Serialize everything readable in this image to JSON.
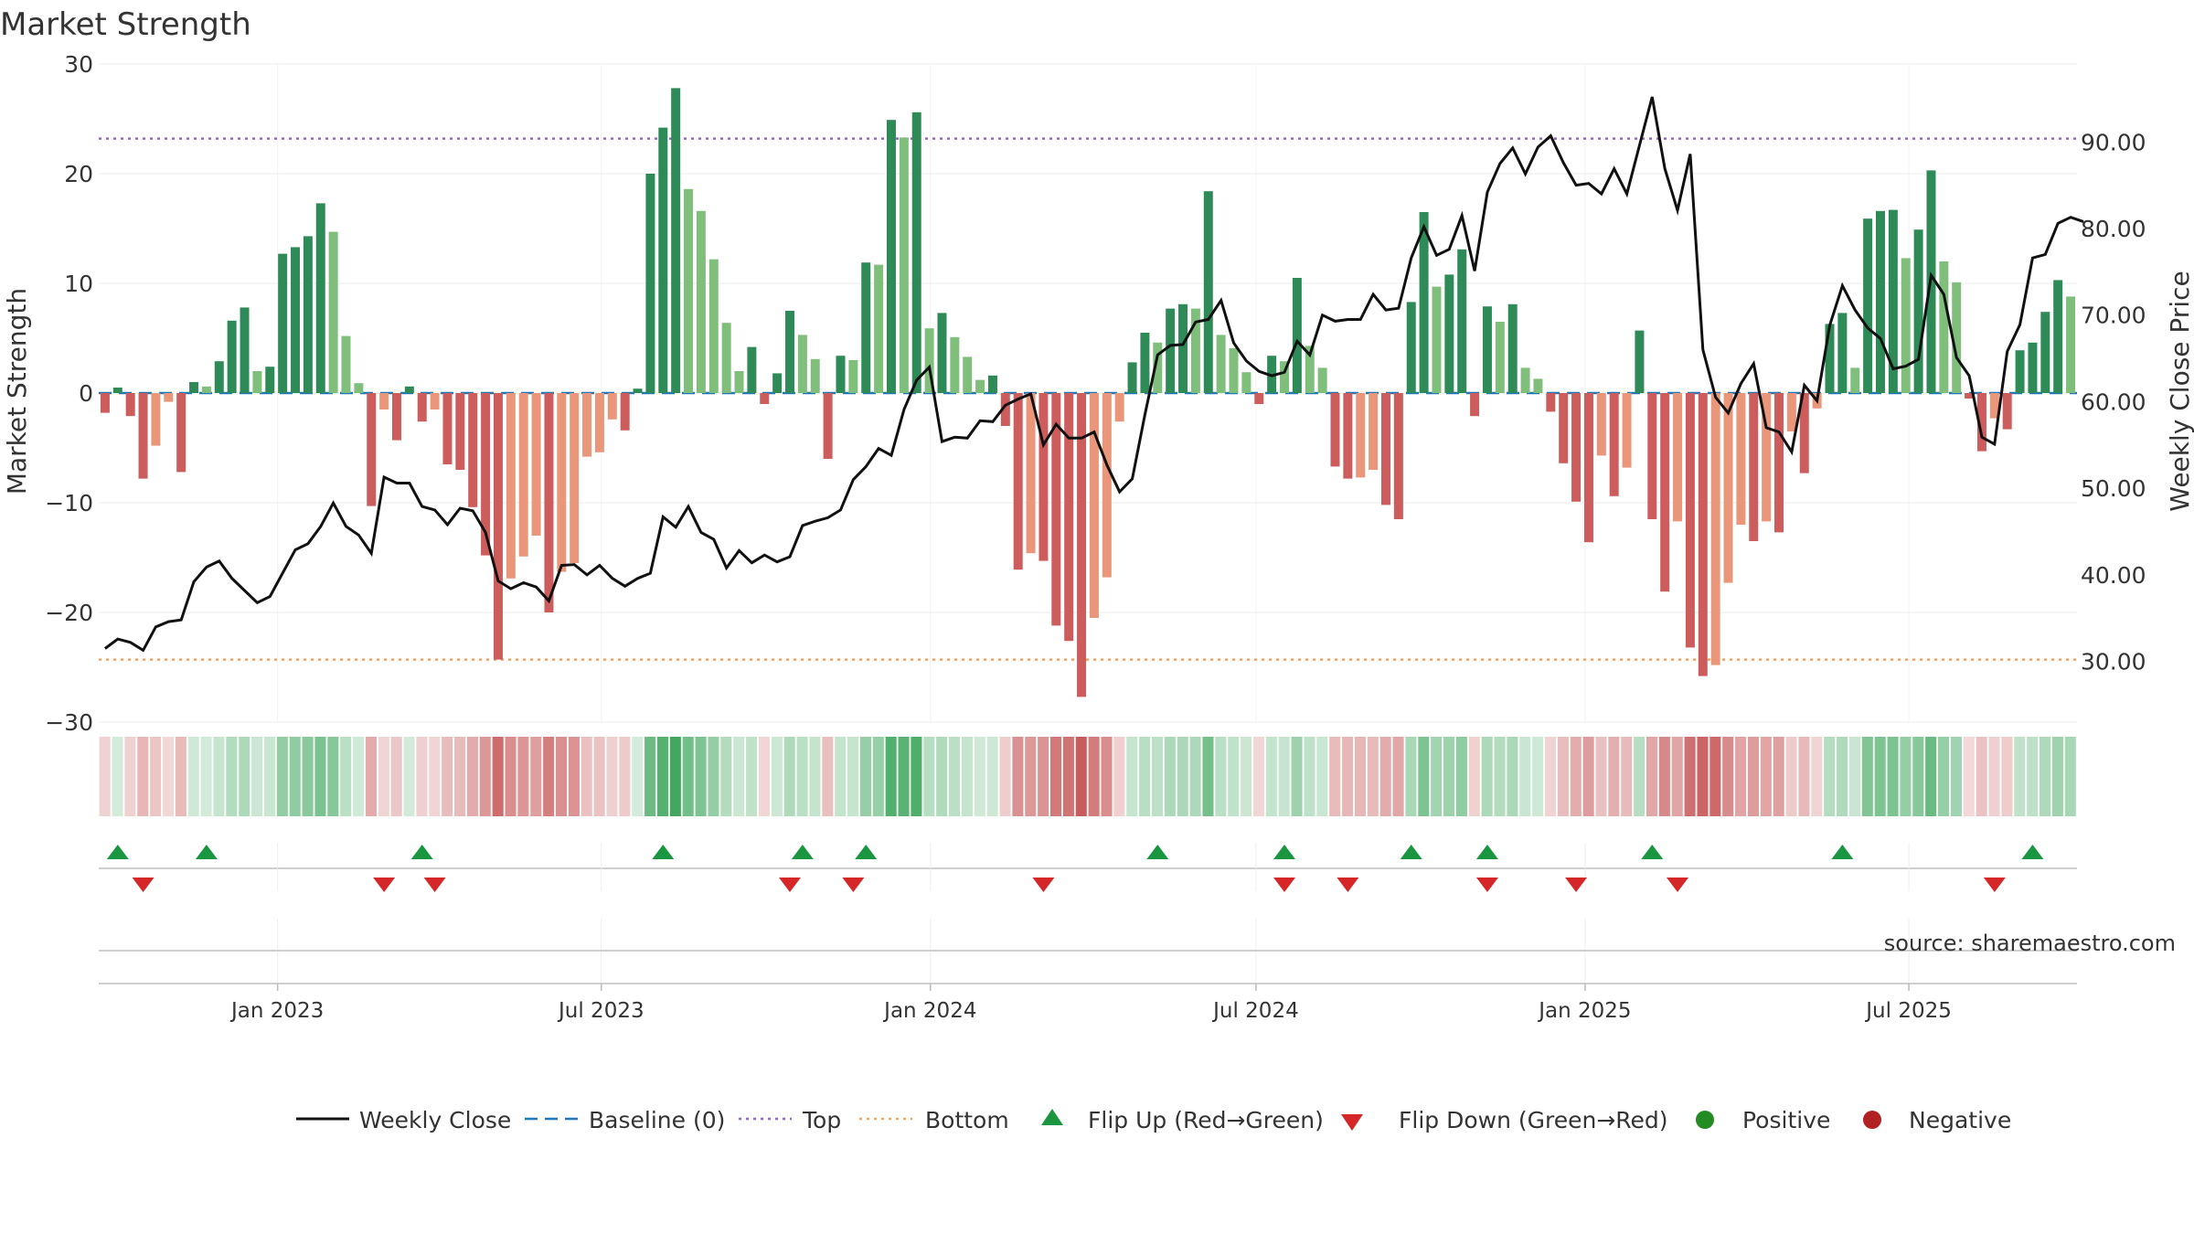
{
  "chart_data": {
    "type": "bar",
    "title": "Market Strength",
    "ylabel": "Market Strength",
    "y2label": "Weekly Close Price",
    "ylim": [
      -30,
      30
    ],
    "y2lim": [
      23.0,
      99.0
    ],
    "yticks": [
      30,
      20,
      10,
      0,
      -10,
      -20,
      -30
    ],
    "ytick_labels": [
      "30",
      "20",
      "10",
      "0",
      "−10",
      "−20",
      "−30"
    ],
    "y2ticks": [
      30,
      40,
      50,
      60,
      70,
      80,
      90
    ],
    "y2tick_labels": [
      "30.00",
      "40.00",
      "50.00",
      "60.00",
      "70.00",
      "80.00",
      "90.00"
    ],
    "top_level": 23.2,
    "bottom_level": -24.3,
    "x_start": "2022-09-23",
    "x_end": "2025-10-03",
    "xticks": [
      "2023-01-01",
      "2023-07-01",
      "2024-01-01",
      "2024-07-01",
      "2025-01-01",
      "2025-07-01"
    ],
    "xtick_labels": [
      "Jan 2023",
      "Jul 2023",
      "Jan 2024",
      "Jul 2024",
      "Jan 2025",
      "Jul 2025"
    ],
    "source": "source: sharemaestro.com",
    "legend": {
      "weekly_close": "Weekly Close",
      "baseline": "Baseline (0)",
      "top": "Top",
      "bottom": "Bottom",
      "flip_up": "Flip Up (Red→Green)",
      "flip_down": "Flip Down (Green→Red)",
      "positive": "Positive",
      "negative": "Negative"
    },
    "colors": {
      "pos_dark": "#2e8b57",
      "pos_light": "#7fbf7b",
      "neg_dark": "#cd5c5c",
      "neg_light": "#e9967a",
      "line": "#111111",
      "baseline": "#1f77b4",
      "top": "#9467bd",
      "bottom": "#f4a460",
      "flip_up": "#1a9641",
      "flip_down": "#d62728",
      "positive_dot": "#228b22",
      "negative_dot": "#b22222"
    },
    "strength": [
      -1.8,
      0.5,
      -2.1,
      -7.8,
      -4.8,
      -0.8,
      -7.2,
      1.0,
      0.6,
      2.9,
      6.6,
      7.8,
      2.0,
      2.4,
      12.7,
      13.3,
      14.3,
      17.3,
      14.7,
      5.2,
      0.9,
      -10.3,
      -1.5,
      -4.3,
      0.6,
      -2.6,
      -1.5,
      -6.5,
      -7.0,
      -10.4,
      -14.8,
      -24.3,
      -16.9,
      -14.9,
      -13.0,
      -20.0,
      -16.3,
      -15.5,
      -5.8,
      -5.4,
      -2.4,
      -3.4,
      0.4,
      20.0,
      24.2,
      27.8,
      18.6,
      16.6,
      12.2,
      6.4,
      2.0,
      4.2,
      -1.0,
      1.8,
      7.5,
      5.3,
      3.1,
      -6.0,
      3.4,
      3.0,
      11.9,
      11.7,
      24.9,
      23.3,
      25.6,
      5.9,
      7.3,
      5.1,
      3.3,
      1.2,
      1.6,
      -3.0,
      -16.1,
      -14.6,
      -15.3,
      -21.2,
      -22.6,
      -27.7,
      -20.5,
      -16.8,
      -2.6,
      2.8,
      5.5,
      4.6,
      7.7,
      8.1,
      7.7,
      18.4,
      5.3,
      4.1,
      1.9,
      -1.0,
      3.4,
      2.9,
      10.5,
      4.3,
      2.3,
      -6.7,
      -7.8,
      -7.7,
      -7.0,
      -10.2,
      -11.5,
      8.3,
      16.5,
      9.7,
      10.8,
      13.1,
      -2.1,
      7.9,
      6.5,
      8.1,
      2.3,
      1.3,
      -1.7,
      -6.4,
      -9.9,
      -13.6,
      -5.7,
      -9.4,
      -6.8,
      5.7,
      -11.5,
      -18.1,
      -11.7,
      -23.2,
      -25.8,
      -24.8,
      -17.3,
      -12.0,
      -13.5,
      -11.7,
      -12.7,
      -3.5,
      -7.3,
      -1.4,
      6.3,
      7.3,
      2.3,
      15.9,
      16.6,
      16.7,
      12.3,
      14.9,
      20.3,
      12.0,
      10.1,
      -0.5,
      -5.3,
      -2.3,
      -3.3,
      3.9,
      4.6,
      7.4,
      10.3,
      8.8
    ],
    "close": [
      31.5,
      32.6,
      32.2,
      31.3,
      34.0,
      34.6,
      34.8,
      39.2,
      40.9,
      41.6,
      39.6,
      38.2,
      36.8,
      37.5,
      40.2,
      42.9,
      43.6,
      45.6,
      48.3,
      45.6,
      44.6,
      42.5,
      51.3,
      50.6,
      50.6,
      47.9,
      47.5,
      45.8,
      47.7,
      47.4,
      44.9,
      39.3,
      38.4,
      39.1,
      38.6,
      37.0,
      41.1,
      41.2,
      40.0,
      41.1,
      39.6,
      38.7,
      39.6,
      40.2,
      46.7,
      45.5,
      47.9,
      44.9,
      44.1,
      40.8,
      42.8,
      41.4,
      42.3,
      41.5,
      42.1,
      45.7,
      46.2,
      46.6,
      47.5,
      51.0,
      52.5,
      54.6,
      53.8,
      59.1,
      62.5,
      64.0,
      55.4,
      55.9,
      55.8,
      57.8,
      57.7,
      59.6,
      60.3,
      60.9,
      55.0,
      57.4,
      55.8,
      55.8,
      56.5,
      52.7,
      49.6,
      51.1,
      58.5,
      65.4,
      66.5,
      66.6,
      69.2,
      69.5,
      71.7,
      66.8,
      64.7,
      63.5,
      63.0,
      63.4,
      67.0,
      65.4,
      70.0,
      69.3,
      69.5,
      69.5,
      72.4,
      70.6,
      70.8,
      76.6,
      80.2,
      76.9,
      77.6,
      81.5,
      75.1,
      84.2,
      87.5,
      89.3,
      86.3,
      89.4,
      90.7,
      87.6,
      85.0,
      85.2,
      84.0,
      86.9,
      84.0,
      89.6,
      95.2,
      86.9,
      82.1,
      88.6,
      66.0,
      60.5,
      58.7,
      62.1,
      64.4,
      57.0,
      56.5,
      54.2,
      61.9,
      60.1,
      68.8,
      73.4,
      70.6,
      68.5,
      67.3,
      63.8,
      64.1,
      64.9,
      74.6,
      72.4,
      65.1,
      63.0,
      55.9,
      55.1,
      65.8,
      68.9,
      76.6,
      77.0,
      80.6,
      81.3,
      80.8
    ],
    "flip_up_weeks": [
      1,
      8,
      25,
      44,
      55,
      60,
      83,
      93,
      103,
      109,
      122,
      137,
      152
    ],
    "flip_down_weeks": [
      3,
      22,
      26,
      54,
      59,
      74,
      93,
      98,
      109,
      116,
      124,
      149
    ]
  }
}
